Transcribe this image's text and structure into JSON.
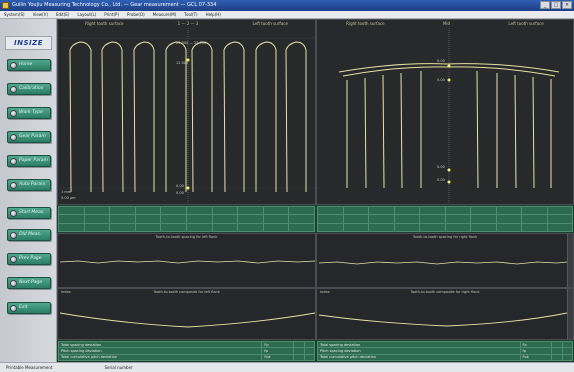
{
  "window": {
    "title": "Guilin Youjiu Measuring Technology Co., Ltd. — Gear measurement — GCL 07-334",
    "buttons": {
      "minimize": "_",
      "maximize": "□",
      "close": "×"
    }
  },
  "menu": [
    "System(S)",
    "View(V)",
    "Edit(E)",
    "Layout(L)",
    "Print(P)",
    "Probe(O)",
    "Measure(M)",
    "Tool(T)",
    "Help(H)"
  ],
  "sidebar": {
    "logo": "INSIZE",
    "buttons": [
      {
        "label": "Home"
      },
      {
        "label": "Calibration"
      },
      {
        "label": "Work Type"
      },
      {
        "label": "Gear Param"
      },
      {
        "label": "Paper Param"
      },
      {
        "label": "Auto Param"
      },
      {
        "label": "Start Meas."
      },
      {
        "label": "Old Meas."
      },
      {
        "label": "Prev Page"
      },
      {
        "label": "Next Page"
      },
      {
        "label": "Exit"
      }
    ]
  },
  "plots": {
    "left": {
      "header_left": "Right tooth surface",
      "header_mid": "1 — 2 — 3",
      "header_right": "Left tooth surface",
      "value_top": "25.000 — 25.000",
      "value_upper": "12.000",
      "value_lower": "0.00",
      "value_bottom": "0.00",
      "corner": "1 mm",
      "corner2": "5.00 µm"
    },
    "right": {
      "header_left": "Right tooth surface",
      "header_mid": "Mid",
      "header_right": "Left tooth surface",
      "value_top": "0.00",
      "value_upper": "5.00",
      "value_lower": "5.00",
      "value_bottom": "0.00"
    }
  },
  "strips": {
    "top_left_title": "Tooth-to-tooth spacing for left flank",
    "top_right_title": "Tooth-to-tooth spacing for right flank",
    "bottom_left_label": "Index",
    "bottom_left_title": "Tooth-to-tooth composite for left flank",
    "bottom_right_label": "Index",
    "bottom_right_title": "Tooth-to-tooth composite for right flank"
  },
  "info_rows": [
    {
      "label": "Total spacing deviation",
      "unit": "Fp"
    },
    {
      "label": "Pitch spacing deviation",
      "unit": "fp"
    },
    {
      "label": "Total cumulative pitch deviation",
      "unit": "Fpk"
    }
  ],
  "statusbar": {
    "left": "Printable Measurement",
    "right": "Serial number"
  },
  "colors": {
    "trace": "#e8e2a6",
    "trace_dot": "#f3ef6a",
    "plot_bg": "#27292b",
    "table_bg": "#2d6b4e",
    "nav_button": "#3a9275"
  }
}
